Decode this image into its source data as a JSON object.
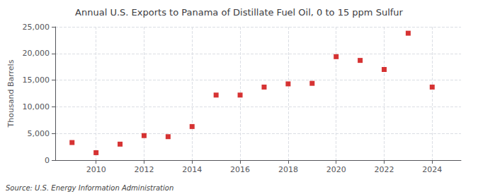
{
  "chart_data": {
    "type": "scatter",
    "title": "Annual U.S. Exports to Panama of Distillate Fuel Oil, 0 to 15 ppm Sulfur",
    "ylabel": "Thousand Barrels",
    "annotations": [
      "Source: U.S. Energy Information Administration"
    ],
    "x": [
      2009,
      2010,
      2011,
      2012,
      2013,
      2014,
      2015,
      2016,
      2017,
      2018,
      2019,
      2020,
      2021,
      2022,
      2023,
      2024
    ],
    "values": [
      3300,
      1400,
      3000,
      4600,
      4400,
      6300,
      12200,
      12200,
      13700,
      14300,
      14400,
      19400,
      18700,
      17000,
      23800,
      13700
    ],
    "color": "#cc0000",
    "marker": "square",
    "xlim": [
      2008.3,
      2025.2
    ],
    "xticks": [
      2010,
      2012,
      2014,
      2016,
      2018,
      2020,
      2022,
      2024
    ],
    "ylim": [
      0,
      25000
    ],
    "yticks": [
      0,
      {
        "value": 5000,
        "label": "5,000"
      },
      {
        "value": 10000,
        "label": "10,000"
      },
      {
        "value": 15000,
        "label": "15,000"
      },
      {
        "value": 20000,
        "label": "20,000"
      },
      {
        "value": 25000,
        "label": "25,000"
      }
    ],
    "grid": true
  }
}
